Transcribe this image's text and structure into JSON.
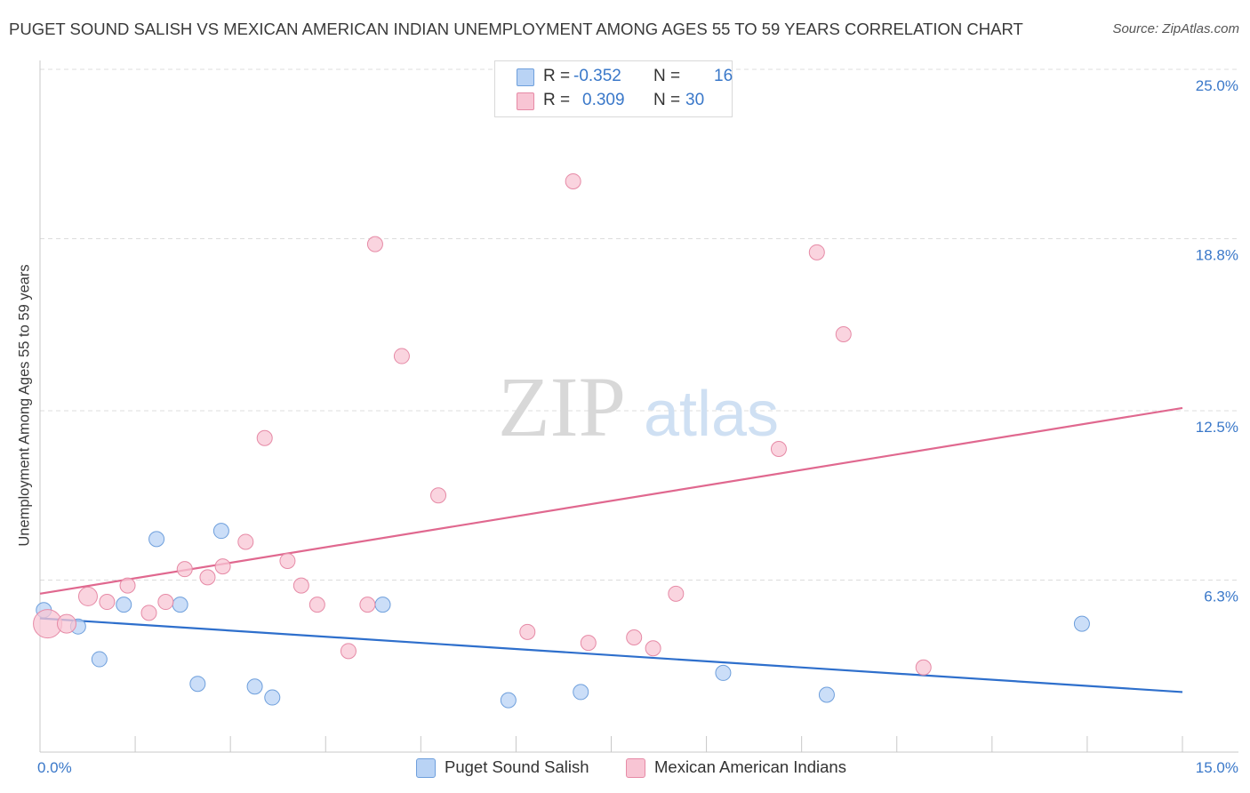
{
  "header": {
    "title": "PUGET SOUND SALISH VS MEXICAN AMERICAN INDIAN UNEMPLOYMENT AMONG AGES 55 TO 59 YEARS CORRELATION CHART",
    "source": "Source: ZipAtlas.com"
  },
  "watermark": {
    "zip": "ZIP",
    "atlas": "atlas"
  },
  "legend": {
    "r_label": "R =",
    "n_label": "N =",
    "series": [
      {
        "name": "Puget Sound Salish",
        "r": "-0.352",
        "n": "16",
        "fill": "#b9d3f5",
        "stroke": "#6e9fdc"
      },
      {
        "name": "Mexican American Indians",
        "r": "0.309",
        "n": "30",
        "fill": "#f8c5d4",
        "stroke": "#e68aa6"
      }
    ]
  },
  "colors": {
    "blue_line": "#2e6fcc",
    "pink_line": "#e0688f",
    "axis_text": "#3a78c9",
    "grid": "#dcdcdc"
  },
  "chart_data": {
    "type": "scatter",
    "title": "PUGET SOUND SALISH VS MEXICAN AMERICAN INDIAN UNEMPLOYMENT AMONG AGES 55 TO 59 YEARS CORRELATION CHART",
    "xlabel": "",
    "ylabel": "Unemployment Among Ages 55 to 59 years",
    "xlim": [
      0,
      15
    ],
    "ylim": [
      0,
      25
    ],
    "x_tick_labels": [
      "0.0%",
      "15.0%"
    ],
    "y_ticks": [
      6.3,
      12.5,
      18.8,
      25.0
    ],
    "y_tick_labels": [
      "6.3%",
      "12.5%",
      "18.8%",
      "25.0%"
    ],
    "grid": true,
    "legend_position": "top-center",
    "series": [
      {
        "name": "Puget Sound Salish",
        "points": [
          {
            "x": 0.05,
            "y": 5.2
          },
          {
            "x": 0.5,
            "y": 4.6
          },
          {
            "x": 0.78,
            "y": 3.4
          },
          {
            "x": 1.1,
            "y": 5.4
          },
          {
            "x": 1.53,
            "y": 7.8
          },
          {
            "x": 1.84,
            "y": 5.4
          },
          {
            "x": 2.07,
            "y": 2.5
          },
          {
            "x": 2.38,
            "y": 8.1
          },
          {
            "x": 2.82,
            "y": 2.4
          },
          {
            "x": 3.05,
            "y": 2.0
          },
          {
            "x": 4.5,
            "y": 5.4
          },
          {
            "x": 6.15,
            "y": 1.9
          },
          {
            "x": 7.1,
            "y": 2.2
          },
          {
            "x": 8.97,
            "y": 2.9
          },
          {
            "x": 10.33,
            "y": 2.1
          },
          {
            "x": 13.68,
            "y": 4.7
          }
        ],
        "trend": {
          "x": [
            0,
            15
          ],
          "y": [
            4.9,
            2.2
          ]
        }
      },
      {
        "name": "Mexican American Indians",
        "points": [
          {
            "x": 0.1,
            "y": 4.7
          },
          {
            "x": 0.35,
            "y": 4.7
          },
          {
            "x": 0.63,
            "y": 5.7
          },
          {
            "x": 0.88,
            "y": 5.5
          },
          {
            "x": 1.15,
            "y": 6.1
          },
          {
            "x": 1.43,
            "y": 5.1
          },
          {
            "x": 1.65,
            "y": 5.5
          },
          {
            "x": 1.9,
            "y": 6.7
          },
          {
            "x": 2.2,
            "y": 6.4
          },
          {
            "x": 2.4,
            "y": 6.8
          },
          {
            "x": 2.7,
            "y": 7.7
          },
          {
            "x": 2.95,
            "y": 11.5
          },
          {
            "x": 3.25,
            "y": 7.0
          },
          {
            "x": 3.43,
            "y": 6.1
          },
          {
            "x": 3.64,
            "y": 5.4
          },
          {
            "x": 4.05,
            "y": 3.7
          },
          {
            "x": 4.3,
            "y": 5.4
          },
          {
            "x": 4.4,
            "y": 18.6
          },
          {
            "x": 4.75,
            "y": 14.5
          },
          {
            "x": 5.23,
            "y": 9.4
          },
          {
            "x": 6.4,
            "y": 4.4
          },
          {
            "x": 7.0,
            "y": 20.9
          },
          {
            "x": 7.2,
            "y": 4.0
          },
          {
            "x": 7.8,
            "y": 4.2
          },
          {
            "x": 8.05,
            "y": 3.8
          },
          {
            "x": 8.35,
            "y": 5.8
          },
          {
            "x": 9.7,
            "y": 11.1
          },
          {
            "x": 10.2,
            "y": 18.3
          },
          {
            "x": 10.55,
            "y": 15.3
          },
          {
            "x": 11.6,
            "y": 3.1
          }
        ],
        "trend": {
          "x": [
            0,
            15
          ],
          "y": [
            5.8,
            12.6
          ]
        }
      }
    ]
  }
}
